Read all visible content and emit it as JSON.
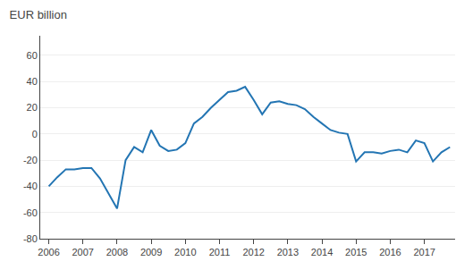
{
  "chart_data": {
    "type": "line",
    "title": "EUR billion",
    "color": "#2375b3",
    "x": [
      2006.0,
      2006.25,
      2006.5,
      2006.75,
      2007.0,
      2007.25,
      2007.5,
      2007.75,
      2008.0,
      2008.25,
      2008.5,
      2008.75,
      2009.0,
      2009.25,
      2009.5,
      2009.75,
      2010.0,
      2010.25,
      2010.5,
      2010.75,
      2011.0,
      2011.25,
      2011.5,
      2011.75,
      2012.0,
      2012.25,
      2012.5,
      2012.75,
      2013.0,
      2013.25,
      2013.5,
      2013.75,
      2014.0,
      2014.25,
      2014.5,
      2014.75,
      2015.0,
      2015.25,
      2015.5,
      2015.75,
      2016.0,
      2016.25,
      2016.5,
      2016.75,
      2017.0,
      2017.25,
      2017.5,
      2017.75
    ],
    "values": [
      -40,
      -33,
      -27,
      -27,
      -26,
      -26,
      -34,
      -46,
      -57,
      -20,
      -10,
      -14,
      3,
      -9,
      -13,
      -12,
      -7,
      8,
      13,
      20,
      26,
      32,
      33,
      36,
      26,
      15,
      24,
      25,
      23,
      22,
      19,
      13,
      8,
      3,
      1,
      0,
      -21,
      -14,
      -14,
      -15,
      -13,
      -12,
      -14,
      -5,
      -7,
      -21,
      -14,
      -10
    ],
    "xlim": [
      2005.75,
      2017.9
    ],
    "xticks": [
      2006,
      2007,
      2008,
      2009,
      2010,
      2011,
      2012,
      2013,
      2014,
      2015,
      2016,
      2017
    ],
    "ylim": [
      -80,
      75
    ],
    "yticks": [
      -80,
      -60,
      -40,
      -20,
      0,
      20,
      40,
      60
    ],
    "grid": "y"
  }
}
